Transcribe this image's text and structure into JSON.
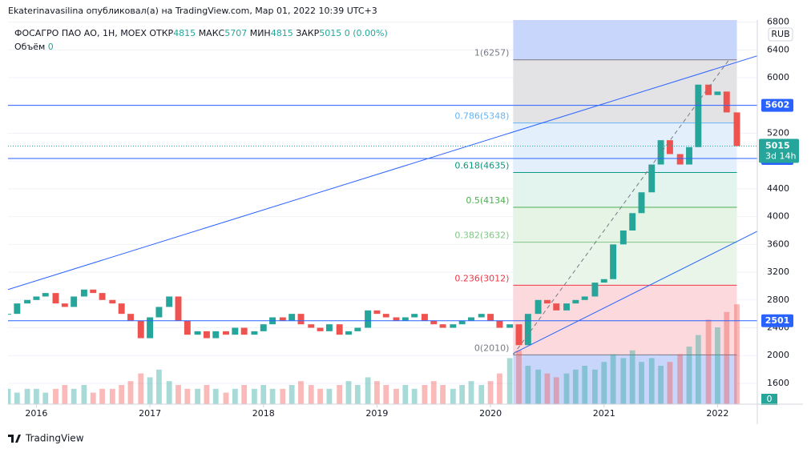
{
  "header": "Ekaterinavasilina опубликовал(а) на TradingView.com, Мар 01, 2022 10:39 UTC+3",
  "footer": "TradingView",
  "chart_data": {
    "type": "candlestick",
    "title": "ФОСАГРО ПАО АО, 1Н, MOEX",
    "legend": [
      {
        "label": "ОТКР",
        "value": 4815
      },
      {
        "label": "МАКС",
        "value": 5707
      },
      {
        "label": "МИН",
        "value": 4815
      },
      {
        "label": "ЗАКР",
        "value": 5015
      }
    ],
    "change": "0 (0.00%)",
    "volume_label": "Объём",
    "volume_value": 0,
    "currency": "RUB",
    "up_color": "#26a69a",
    "down_color": "#ef5350",
    "x": [
      2015.75,
      2015.83,
      2015.92,
      2016.0,
      2016.08,
      2016.17,
      2016.25,
      2016.33,
      2016.42,
      2016.5,
      2016.58,
      2016.67,
      2016.75,
      2016.83,
      2016.92,
      2017.0,
      2017.08,
      2017.17,
      2017.25,
      2017.33,
      2017.42,
      2017.5,
      2017.58,
      2017.67,
      2017.75,
      2017.83,
      2017.92,
      2018.0,
      2018.08,
      2018.17,
      2018.25,
      2018.33,
      2018.42,
      2018.5,
      2018.58,
      2018.67,
      2018.75,
      2018.83,
      2018.92,
      2019.0,
      2019.08,
      2019.17,
      2019.25,
      2019.33,
      2019.42,
      2019.5,
      2019.58,
      2019.67,
      2019.75,
      2019.83,
      2019.92,
      2020.0,
      2020.08,
      2020.17,
      2020.25,
      2020.33,
      2020.42,
      2020.5,
      2020.58,
      2020.67,
      2020.75,
      2020.83,
      2020.92,
      2021.0,
      2021.08,
      2021.17,
      2021.25,
      2021.33,
      2021.42,
      2021.5,
      2021.58,
      2021.67,
      2021.75,
      2021.83,
      2021.92,
      2022.0,
      2022.08,
      2022.17
    ],
    "close": [
      2600,
      2750,
      2800,
      2850,
      2900,
      2750,
      2700,
      2850,
      2950,
      2900,
      2800,
      2750,
      2600,
      2500,
      2250,
      2550,
      2700,
      2850,
      2500,
      2300,
      2350,
      2250,
      2350,
      2300,
      2400,
      2300,
      2350,
      2450,
      2550,
      2500,
      2600,
      2450,
      2400,
      2350,
      2450,
      2300,
      2350,
      2400,
      2650,
      2600,
      2550,
      2500,
      2550,
      2600,
      2500,
      2450,
      2400,
      2450,
      2500,
      2550,
      2600,
      2500,
      2400,
      2450,
      2150,
      2600,
      2800,
      2750,
      2650,
      2750,
      2800,
      2850,
      3050,
      3100,
      3600,
      3800,
      4050,
      4350,
      4750,
      5100,
      4900,
      4750,
      5000,
      5900,
      5750,
      5800,
      5500,
      5015
    ],
    "volume": [
      4,
      3,
      4,
      4,
      3,
      4,
      5,
      4,
      5,
      3,
      4,
      4,
      5,
      6,
      8,
      7,
      9,
      6,
      5,
      4,
      4,
      5,
      4,
      3,
      4,
      5,
      4,
      5,
      4,
      4,
      5,
      6,
      5,
      4,
      4,
      5,
      6,
      5,
      7,
      6,
      5,
      4,
      5,
      4,
      5,
      6,
      5,
      4,
      5,
      6,
      5,
      6,
      8,
      12,
      14,
      10,
      9,
      8,
      7,
      8,
      9,
      10,
      9,
      11,
      13,
      12,
      14,
      11,
      12,
      10,
      11,
      13,
      15,
      18,
      22,
      20,
      24,
      26
    ],
    "xlim": [
      2015.75,
      2022.35
    ],
    "xticks": [
      2016,
      2017,
      2018,
      2019,
      2020,
      2021,
      2022
    ],
    "ylim": [
      1300,
      6830
    ],
    "yticks": [
      1600,
      2000,
      2400,
      2800,
      3200,
      3600,
      4000,
      4400,
      4800,
      5200,
      5600,
      6000,
      6400,
      6800
    ],
    "y2lim": [
      0,
      100
    ],
    "y2ticks": [
      0
    ],
    "fib": {
      "x": [
        2020.2,
        2022.17
      ],
      "range_color": "#c9d6fb",
      "levels": [
        {
          "label": "1(6257)",
          "value": 6257,
          "color": "#787b86",
          "fill": "#e3e3e6"
        },
        {
          "label": "0.786(5348)",
          "value": 5348,
          "color": "#64b5f6",
          "fill": "#e3f0fc"
        },
        {
          "label": "0.618(4635)",
          "value": 4635,
          "color": "#089981",
          "fill": "#e3f3ee"
        },
        {
          "label": "0.5(4134)",
          "value": 4134,
          "color": "#4caf50",
          "fill": "#e6f4e6"
        },
        {
          "label": "0.382(3632)",
          "value": 3632,
          "color": "#81c784",
          "fill": "#e9f5e9"
        },
        {
          "label": "0.236(3012)",
          "value": 3012,
          "color": "#f23645",
          "fill": "#fcd9dc"
        },
        {
          "label": "0(2010)",
          "value": 2010,
          "color": "#787b86",
          "fill": null
        }
      ]
    },
    "hlines": [
      {
        "value": 5602,
        "color": "#2962ff"
      },
      {
        "value": 4837,
        "color": "#2962ff"
      },
      {
        "value": 2501,
        "color": "#2962ff"
      }
    ],
    "last": {
      "value": 5015,
      "countdown": "3d 14h",
      "color": "#26a69a"
    },
    "trendlines": [
      {
        "x": [
          2015.75,
          2022.4
        ],
        "y": [
          2950,
          6340
        ],
        "color": "#2962ff",
        "dash": false
      },
      {
        "x": [
          2020.2,
          2022.4
        ],
        "y": [
          2030,
          3830
        ],
        "color": "#2962ff",
        "dash": false
      },
      {
        "x": [
          2020.2,
          2022.1
        ],
        "y": [
          2010,
          6257
        ],
        "color": "#787b86",
        "dash": true
      }
    ]
  }
}
